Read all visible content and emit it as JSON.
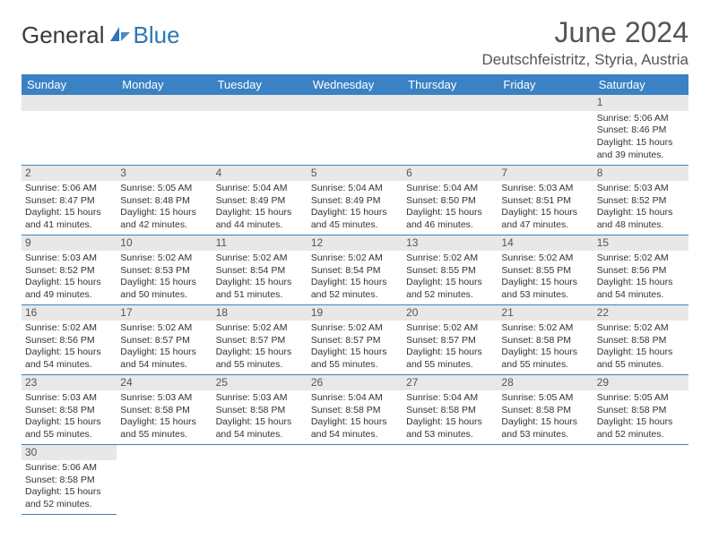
{
  "brand": {
    "part1": "General",
    "part2": "Blue"
  },
  "title": "June 2024",
  "location": "Deutschfeistritz, Styria, Austria",
  "colors": {
    "header_bg": "#3b82c4",
    "header_text": "#ffffff",
    "daynum_bg": "#e8e8e8",
    "border": "#3b82c4",
    "brand_blue": "#2c77b8",
    "text": "#333333"
  },
  "weekdays": [
    "Sunday",
    "Monday",
    "Tuesday",
    "Wednesday",
    "Thursday",
    "Friday",
    "Saturday"
  ],
  "weeks": [
    [
      null,
      null,
      null,
      null,
      null,
      null,
      {
        "n": "1",
        "sr": "5:06 AM",
        "ss": "8:46 PM",
        "dl": "15 hours and 39 minutes."
      }
    ],
    [
      {
        "n": "2",
        "sr": "5:06 AM",
        "ss": "8:47 PM",
        "dl": "15 hours and 41 minutes."
      },
      {
        "n": "3",
        "sr": "5:05 AM",
        "ss": "8:48 PM",
        "dl": "15 hours and 42 minutes."
      },
      {
        "n": "4",
        "sr": "5:04 AM",
        "ss": "8:49 PM",
        "dl": "15 hours and 44 minutes."
      },
      {
        "n": "5",
        "sr": "5:04 AM",
        "ss": "8:49 PM",
        "dl": "15 hours and 45 minutes."
      },
      {
        "n": "6",
        "sr": "5:04 AM",
        "ss": "8:50 PM",
        "dl": "15 hours and 46 minutes."
      },
      {
        "n": "7",
        "sr": "5:03 AM",
        "ss": "8:51 PM",
        "dl": "15 hours and 47 minutes."
      },
      {
        "n": "8",
        "sr": "5:03 AM",
        "ss": "8:52 PM",
        "dl": "15 hours and 48 minutes."
      }
    ],
    [
      {
        "n": "9",
        "sr": "5:03 AM",
        "ss": "8:52 PM",
        "dl": "15 hours and 49 minutes."
      },
      {
        "n": "10",
        "sr": "5:02 AM",
        "ss": "8:53 PM",
        "dl": "15 hours and 50 minutes."
      },
      {
        "n": "11",
        "sr": "5:02 AM",
        "ss": "8:54 PM",
        "dl": "15 hours and 51 minutes."
      },
      {
        "n": "12",
        "sr": "5:02 AM",
        "ss": "8:54 PM",
        "dl": "15 hours and 52 minutes."
      },
      {
        "n": "13",
        "sr": "5:02 AM",
        "ss": "8:55 PM",
        "dl": "15 hours and 52 minutes."
      },
      {
        "n": "14",
        "sr": "5:02 AM",
        "ss": "8:55 PM",
        "dl": "15 hours and 53 minutes."
      },
      {
        "n": "15",
        "sr": "5:02 AM",
        "ss": "8:56 PM",
        "dl": "15 hours and 54 minutes."
      }
    ],
    [
      {
        "n": "16",
        "sr": "5:02 AM",
        "ss": "8:56 PM",
        "dl": "15 hours and 54 minutes."
      },
      {
        "n": "17",
        "sr": "5:02 AM",
        "ss": "8:57 PM",
        "dl": "15 hours and 54 minutes."
      },
      {
        "n": "18",
        "sr": "5:02 AM",
        "ss": "8:57 PM",
        "dl": "15 hours and 55 minutes."
      },
      {
        "n": "19",
        "sr": "5:02 AM",
        "ss": "8:57 PM",
        "dl": "15 hours and 55 minutes."
      },
      {
        "n": "20",
        "sr": "5:02 AM",
        "ss": "8:57 PM",
        "dl": "15 hours and 55 minutes."
      },
      {
        "n": "21",
        "sr": "5:02 AM",
        "ss": "8:58 PM",
        "dl": "15 hours and 55 minutes."
      },
      {
        "n": "22",
        "sr": "5:02 AM",
        "ss": "8:58 PM",
        "dl": "15 hours and 55 minutes."
      }
    ],
    [
      {
        "n": "23",
        "sr": "5:03 AM",
        "ss": "8:58 PM",
        "dl": "15 hours and 55 minutes."
      },
      {
        "n": "24",
        "sr": "5:03 AM",
        "ss": "8:58 PM",
        "dl": "15 hours and 55 minutes."
      },
      {
        "n": "25",
        "sr": "5:03 AM",
        "ss": "8:58 PM",
        "dl": "15 hours and 54 minutes."
      },
      {
        "n": "26",
        "sr": "5:04 AM",
        "ss": "8:58 PM",
        "dl": "15 hours and 54 minutes."
      },
      {
        "n": "27",
        "sr": "5:04 AM",
        "ss": "8:58 PM",
        "dl": "15 hours and 53 minutes."
      },
      {
        "n": "28",
        "sr": "5:05 AM",
        "ss": "8:58 PM",
        "dl": "15 hours and 53 minutes."
      },
      {
        "n": "29",
        "sr": "5:05 AM",
        "ss": "8:58 PM",
        "dl": "15 hours and 52 minutes."
      }
    ],
    [
      {
        "n": "30",
        "sr": "5:06 AM",
        "ss": "8:58 PM",
        "dl": "15 hours and 52 minutes."
      },
      null,
      null,
      null,
      null,
      null,
      null
    ]
  ],
  "labels": {
    "sunrise": "Sunrise:",
    "sunset": "Sunset:",
    "daylight": "Daylight:"
  }
}
